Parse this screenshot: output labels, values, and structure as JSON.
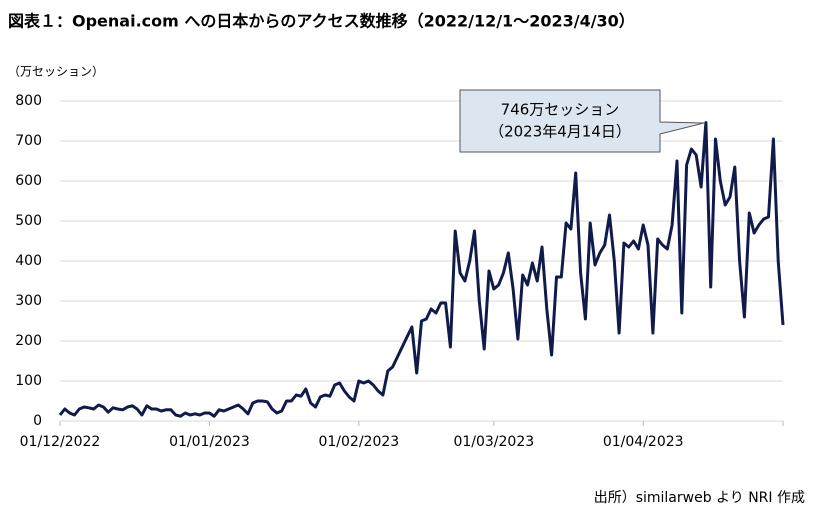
{
  "chart_data": {
    "type": "line",
    "title": "図表１：Openai.com への日本からのアクセス数推移（2022/12/1～2023/4/30）",
    "y_unit": "（万セッション）",
    "source": "出所）similarweb より NRI 作成",
    "annotation": {
      "lines": [
        "746万セッション",
        "（2023年4月14日）"
      ],
      "x": "2023-04-14",
      "y": 746
    },
    "x": [
      "2022-12-01",
      "2022-12-02",
      "2022-12-03",
      "2022-12-04",
      "2022-12-05",
      "2022-12-06",
      "2022-12-07",
      "2022-12-08",
      "2022-12-09",
      "2022-12-10",
      "2022-12-11",
      "2022-12-12",
      "2022-12-13",
      "2022-12-14",
      "2022-12-15",
      "2022-12-16",
      "2022-12-17",
      "2022-12-18",
      "2022-12-19",
      "2022-12-20",
      "2022-12-21",
      "2022-12-22",
      "2022-12-23",
      "2022-12-24",
      "2022-12-25",
      "2022-12-26",
      "2022-12-27",
      "2022-12-28",
      "2022-12-29",
      "2022-12-30",
      "2022-12-31",
      "2023-01-01",
      "2023-01-02",
      "2023-01-03",
      "2023-01-04",
      "2023-01-05",
      "2023-01-06",
      "2023-01-07",
      "2023-01-08",
      "2023-01-09",
      "2023-01-10",
      "2023-01-11",
      "2023-01-12",
      "2023-01-13",
      "2023-01-14",
      "2023-01-15",
      "2023-01-16",
      "2023-01-17",
      "2023-01-18",
      "2023-01-19",
      "2023-01-20",
      "2023-01-21",
      "2023-01-22",
      "2023-01-23",
      "2023-01-24",
      "2023-01-25",
      "2023-01-26",
      "2023-01-27",
      "2023-01-28",
      "2023-01-29",
      "2023-01-30",
      "2023-01-31",
      "2023-02-01",
      "2023-02-02",
      "2023-02-03",
      "2023-02-04",
      "2023-02-05",
      "2023-02-06",
      "2023-02-07",
      "2023-02-08",
      "2023-02-09",
      "2023-02-10",
      "2023-02-11",
      "2023-02-12",
      "2023-02-13",
      "2023-02-14",
      "2023-02-15",
      "2023-02-16",
      "2023-02-17",
      "2023-02-18",
      "2023-02-19",
      "2023-02-20",
      "2023-02-21",
      "2023-02-22",
      "2023-02-23",
      "2023-02-24",
      "2023-02-25",
      "2023-02-26",
      "2023-02-27",
      "2023-02-28",
      "2023-03-01",
      "2023-03-02",
      "2023-03-03",
      "2023-03-04",
      "2023-03-05",
      "2023-03-06",
      "2023-03-07",
      "2023-03-08",
      "2023-03-09",
      "2023-03-10",
      "2023-03-11",
      "2023-03-12",
      "2023-03-13",
      "2023-03-14",
      "2023-03-15",
      "2023-03-16",
      "2023-03-17",
      "2023-03-18",
      "2023-03-19",
      "2023-03-20",
      "2023-03-21",
      "2023-03-22",
      "2023-03-23",
      "2023-03-24",
      "2023-03-25",
      "2023-03-26",
      "2023-03-27",
      "2023-03-28",
      "2023-03-29",
      "2023-03-30",
      "2023-03-31",
      "2023-04-01",
      "2023-04-02",
      "2023-04-03",
      "2023-04-04",
      "2023-04-05",
      "2023-04-06",
      "2023-04-07",
      "2023-04-08",
      "2023-04-09",
      "2023-04-10",
      "2023-04-11",
      "2023-04-12",
      "2023-04-13",
      "2023-04-14",
      "2023-04-15",
      "2023-04-16",
      "2023-04-17",
      "2023-04-18",
      "2023-04-19",
      "2023-04-20",
      "2023-04-21",
      "2023-04-22",
      "2023-04-23",
      "2023-04-24",
      "2023-04-25",
      "2023-04-26",
      "2023-04-27",
      "2023-04-28",
      "2023-04-29",
      "2023-04-30"
    ],
    "values": [
      15,
      30,
      20,
      15,
      30,
      35,
      33,
      30,
      40,
      35,
      22,
      33,
      30,
      28,
      35,
      38,
      30,
      15,
      38,
      30,
      30,
      25,
      28,
      28,
      15,
      12,
      20,
      15,
      18,
      15,
      20,
      20,
      12,
      28,
      25,
      30,
      35,
      40,
      30,
      18,
      45,
      50,
      50,
      48,
      30,
      20,
      25,
      50,
      50,
      65,
      62,
      80,
      45,
      35,
      60,
      65,
      62,
      90,
      95,
      75,
      60,
      50,
      100,
      95,
      100,
      90,
      75,
      65,
      125,
      135,
      160,
      185,
      210,
      235,
      120,
      250,
      255,
      280,
      270,
      295,
      295,
      185,
      475,
      370,
      350,
      400,
      475,
      300,
      180,
      375,
      330,
      340,
      370,
      420,
      330,
      205,
      365,
      340,
      395,
      350,
      435,
      280,
      165,
      360,
      360,
      495,
      480,
      620,
      370,
      255,
      495,
      390,
      420,
      440,
      515,
      400,
      220,
      445,
      435,
      450,
      430,
      490,
      440,
      220,
      455,
      440,
      430,
      490,
      650,
      270,
      640,
      680,
      665,
      585,
      746,
      335,
      705,
      600,
      540,
      560,
      635,
      400,
      260,
      520,
      470,
      490,
      505,
      510,
      705,
      400,
      240
    ],
    "color": "#101b4b",
    "xlim": [
      "2022-12-01",
      "2023-04-30"
    ],
    "xticks": [
      {
        "value": "2022-12-01",
        "label": "01/12/2022"
      },
      {
        "value": "2023-01-01",
        "label": "01/01/2023"
      },
      {
        "value": "2023-02-01",
        "label": "01/02/2023"
      },
      {
        "value": "2023-03-01",
        "label": "01/03/2023"
      },
      {
        "value": "2023-04-01",
        "label": "01/04/2023"
      }
    ],
    "ylim": [
      0,
      800
    ],
    "yticks": [
      0,
      100,
      200,
      300,
      400,
      500,
      600,
      700,
      800
    ],
    "grid": true
  }
}
